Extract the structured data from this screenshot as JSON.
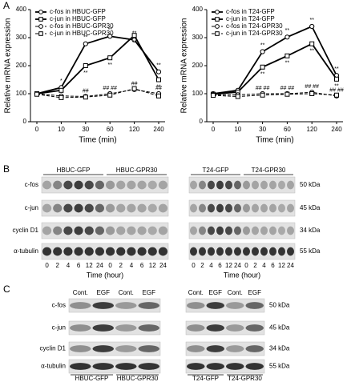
{
  "panel_labels": [
    "A",
    "B",
    "C"
  ],
  "chart_data": [
    {
      "type": "line",
      "xlabel": "Time (min)",
      "ylabel": "Relative mRNA expression",
      "categories": [
        "0",
        "10",
        "30",
        "60",
        "120",
        "240"
      ],
      "ylim": [
        0,
        400
      ],
      "yticks": [
        0,
        100,
        200,
        300,
        400
      ],
      "series": [
        {
          "name": "c-fos in HBUC-GFP",
          "color": "#000000",
          "line_style": "solid",
          "marker": "circle",
          "values": [
            100,
            122,
            278,
            305,
            292,
            178
          ],
          "annotations": [
            null,
            "*",
            "**",
            "**",
            "**",
            "**"
          ]
        },
        {
          "name": "c-jun in HBUC-GFP",
          "color": "#000000",
          "line_style": "solid",
          "marker": "square",
          "values": [
            100,
            112,
            200,
            228,
            308,
            150
          ],
          "annotations": [
            null,
            null,
            "**",
            "**",
            "**",
            "**"
          ]
        },
        {
          "name": "c-fos in HBUC-GPR30",
          "color": "#000000",
          "line_style": "dashed",
          "marker": "circle",
          "values": [
            100,
            92,
            90,
            100,
            115,
            100
          ],
          "annotations": [
            null,
            null,
            "##",
            "## ##",
            "##",
            "##"
          ]
        },
        {
          "name": "c-jun in HBUC-GPR30",
          "color": "#000000",
          "line_style": "dashed",
          "marker": "square",
          "values": [
            98,
            86,
            88,
            95,
            118,
            92
          ],
          "annotations": [
            null,
            null,
            null,
            null,
            null,
            null
          ]
        }
      ]
    },
    {
      "type": "line",
      "xlabel": "Time (min)",
      "ylabel": "Relative mRNA expression",
      "categories": [
        "0",
        "10",
        "30",
        "60",
        "120",
        "240"
      ],
      "ylim": [
        0,
        400
      ],
      "yticks": [
        0,
        100,
        200,
        300,
        400
      ],
      "series": [
        {
          "name": "c-fos in T24-GFP",
          "color": "#000000",
          "line_style": "solid",
          "marker": "circle",
          "values": [
            100,
            112,
            250,
            302,
            340,
            165
          ],
          "annotations": [
            null,
            null,
            "**",
            "**",
            "**",
            "**"
          ]
        },
        {
          "name": "c-jun in T24-GFP",
          "color": "#000000",
          "line_style": "solid",
          "marker": "square",
          "values": [
            98,
            106,
            195,
            235,
            278,
            152
          ],
          "annotations": [
            null,
            null,
            "**",
            "**",
            "**",
            "**"
          ]
        },
        {
          "name": "c-fos in T24-GPR30",
          "color": "#000000",
          "line_style": "dashed",
          "marker": "circle",
          "values": [
            96,
            96,
            100,
            100,
            105,
            92
          ],
          "annotations": [
            null,
            null,
            "## ##",
            "## ##",
            "## ##",
            "## ##"
          ]
        },
        {
          "name": "c-jun in T24-GPR30",
          "color": "#000000",
          "line_style": "dashed",
          "marker": "square",
          "values": [
            94,
            90,
            95,
            98,
            100,
            95
          ],
          "annotations": [
            null,
            null,
            null,
            null,
            null,
            null
          ]
        }
      ]
    }
  ],
  "blot_b": {
    "left": {
      "groups": [
        "HBUC-GFP",
        "HBUC-GPR30"
      ],
      "rows": [
        "c-fos",
        "c-jun",
        "cyclin D1",
        "α-tubulin"
      ],
      "lanes": [
        "0",
        "2",
        "4",
        "6",
        "12",
        "24",
        "0",
        "2",
        "4",
        "6",
        "12",
        "24"
      ],
      "xlabel": "Time (hour)"
    },
    "right": {
      "groups": [
        "T24-GFP",
        "T24-GPR30"
      ],
      "lanes": [
        "0",
        "2",
        "4",
        "6",
        "12",
        "24",
        "0",
        "2",
        "4",
        "6",
        "12",
        "24"
      ],
      "xlabel": "Time (hour)",
      "sizes": [
        "50 kDa",
        "45 kDa",
        "34 kDa",
        "55 kDa"
      ]
    }
  },
  "blot_c": {
    "left": {
      "groups": [
        "HBUC-GFP",
        "HBUC-GPR30"
      ],
      "rows": [
        "c-fos",
        "c-jun",
        "cyclin D1",
        "α-tubulin"
      ],
      "lanes": [
        "Cont.",
        "EGF",
        "Cont.",
        "EGF"
      ]
    },
    "right": {
      "groups": [
        "T24-GFP",
        "T24-GPR30"
      ],
      "lanes": [
        "Cont.",
        "EGF",
        "Cont.",
        "EGF"
      ],
      "sizes": [
        "50 kDa",
        "45 kDa",
        "34 kDa",
        "55 kDa"
      ]
    }
  }
}
